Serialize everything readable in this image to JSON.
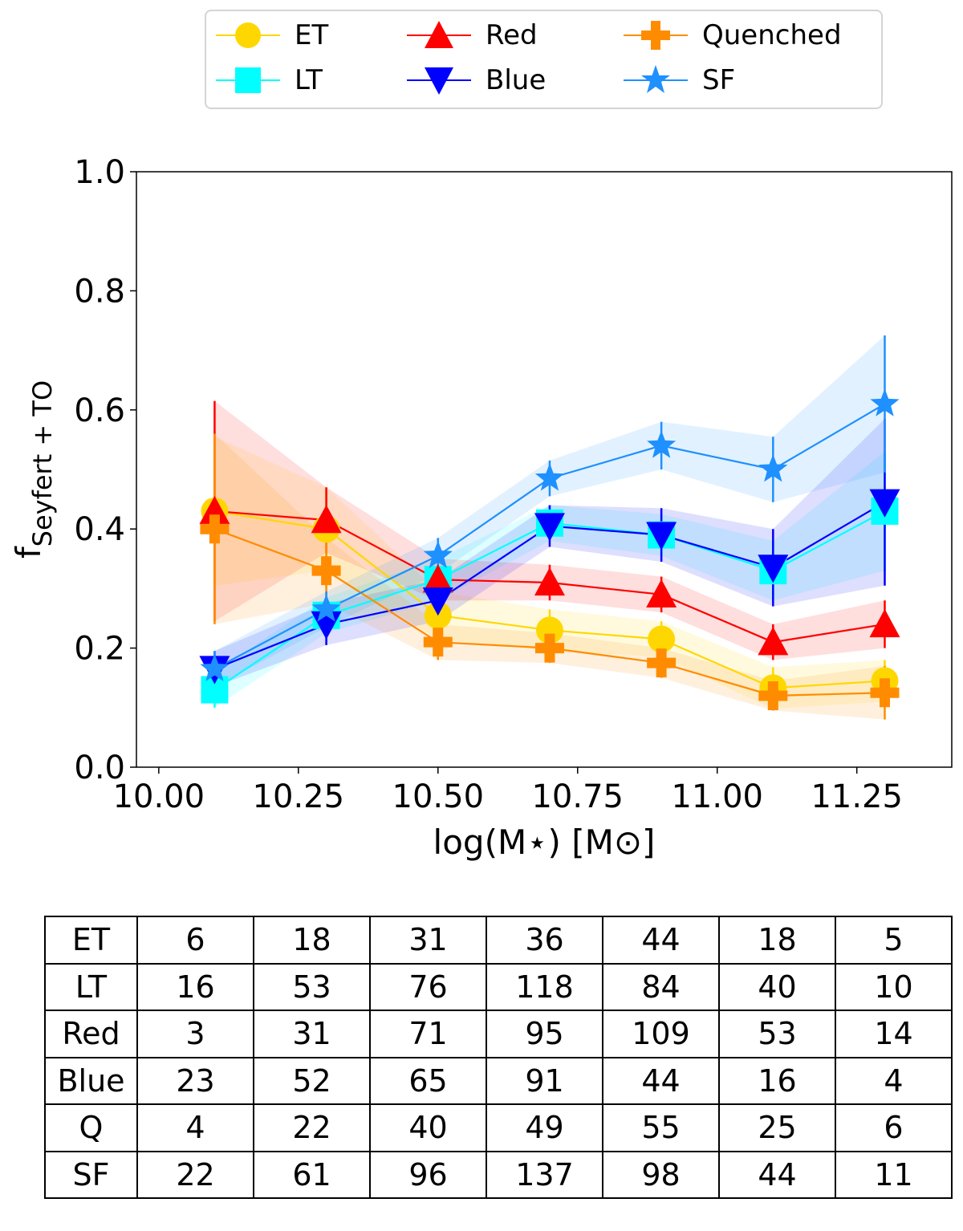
{
  "chart_data": {
    "type": "line",
    "title": "",
    "xlabel": "log(M⋆) [M⊙]",
    "ylabel": "fSeyfert+TO",
    "ylabel_main": "f",
    "ylabel_sub": "Seyfert + TO",
    "xlim": [
      9.96,
      11.42
    ],
    "ylim": [
      0.0,
      1.0
    ],
    "xticks": [
      10.0,
      10.25,
      10.5,
      10.75,
      11.0,
      11.25
    ],
    "xtick_labels": [
      "10.00",
      "10.25",
      "10.50",
      "10.75",
      "11.00",
      "11.25"
    ],
    "yticks": [
      0.0,
      0.2,
      0.4,
      0.6,
      0.8,
      1.0
    ],
    "ytick_labels": [
      "0.0",
      "0.2",
      "0.4",
      "0.6",
      "0.8",
      "1.0"
    ],
    "x": [
      10.1,
      10.3,
      10.5,
      10.7,
      10.9,
      11.1,
      11.3
    ],
    "legend_position": "top-center",
    "series": [
      {
        "name": "ET",
        "color": "#FFD700",
        "marker": "circle",
        "values": [
          0.43,
          0.4,
          0.255,
          0.23,
          0.215,
          0.133,
          0.145
        ],
        "err": [
          0.125,
          0.07,
          0.04,
          0.035,
          0.03,
          0.035,
          0.035
        ]
      },
      {
        "name": "LT",
        "color": "#00FFFF",
        "marker": "square",
        "values": [
          0.13,
          0.255,
          0.315,
          0.41,
          0.39,
          0.33,
          0.43
        ],
        "err": [
          0.03,
          0.03,
          0.035,
          0.03,
          0.035,
          0.05,
          0.1
        ]
      },
      {
        "name": "Red",
        "color": "#FF0000",
        "marker": "triangle-up",
        "values": [
          0.43,
          0.415,
          0.315,
          0.31,
          0.29,
          0.21,
          0.24
        ],
        "err": [
          0.185,
          0.055,
          0.035,
          0.03,
          0.03,
          0.03,
          0.04
        ]
      },
      {
        "name": "Blue",
        "color": "#0000FF",
        "marker": "triangle-down",
        "values": [
          0.165,
          0.24,
          0.28,
          0.405,
          0.39,
          0.335,
          0.445
        ],
        "err": [
          0.03,
          0.035,
          0.035,
          0.035,
          0.045,
          0.065,
          0.14
        ]
      },
      {
        "name": "Quenched",
        "color": "#FF8C00",
        "marker": "plus",
        "values": [
          0.4,
          0.33,
          0.21,
          0.2,
          0.175,
          0.12,
          0.125
        ],
        "err": [
          0.16,
          0.055,
          0.03,
          0.025,
          0.025,
          0.025,
          0.045
        ]
      },
      {
        "name": "SF",
        "color": "#1E90FF",
        "marker": "star",
        "values": [
          0.165,
          0.265,
          0.355,
          0.485,
          0.54,
          0.5,
          0.61
        ],
        "err": [
          0.03,
          0.03,
          0.03,
          0.03,
          0.04,
          0.055,
          0.115
        ]
      }
    ]
  },
  "legend": {
    "items": [
      {
        "label": "ET",
        "color": "#FFD700",
        "marker": "circle"
      },
      {
        "label": "LT",
        "color": "#00FFFF",
        "marker": "square"
      },
      {
        "label": "Red",
        "color": "#FF0000",
        "marker": "triangle-up"
      },
      {
        "label": "Blue",
        "color": "#0000FF",
        "marker": "triangle-down"
      },
      {
        "label": "Quenched",
        "color": "#FF8C00",
        "marker": "plus"
      },
      {
        "label": "SF",
        "color": "#1E90FF",
        "marker": "star"
      }
    ]
  },
  "count_table": {
    "rows": [
      {
        "label": "ET",
        "values": [
          "6",
          "18",
          "31",
          "36",
          "44",
          "18",
          "5"
        ]
      },
      {
        "label": "LT",
        "values": [
          "16",
          "53",
          "76",
          "118",
          "84",
          "40",
          "10"
        ]
      },
      {
        "label": "Red",
        "values": [
          "3",
          "31",
          "71",
          "95",
          "109",
          "53",
          "14"
        ]
      },
      {
        "label": "Blue",
        "values": [
          "23",
          "52",
          "65",
          "91",
          "44",
          "16",
          "4"
        ]
      },
      {
        "label": "Q",
        "values": [
          "4",
          "22",
          "40",
          "49",
          "55",
          "25",
          "6"
        ]
      },
      {
        "label": "SF",
        "values": [
          "22",
          "61",
          "96",
          "137",
          "98",
          "44",
          "11"
        ]
      }
    ]
  }
}
